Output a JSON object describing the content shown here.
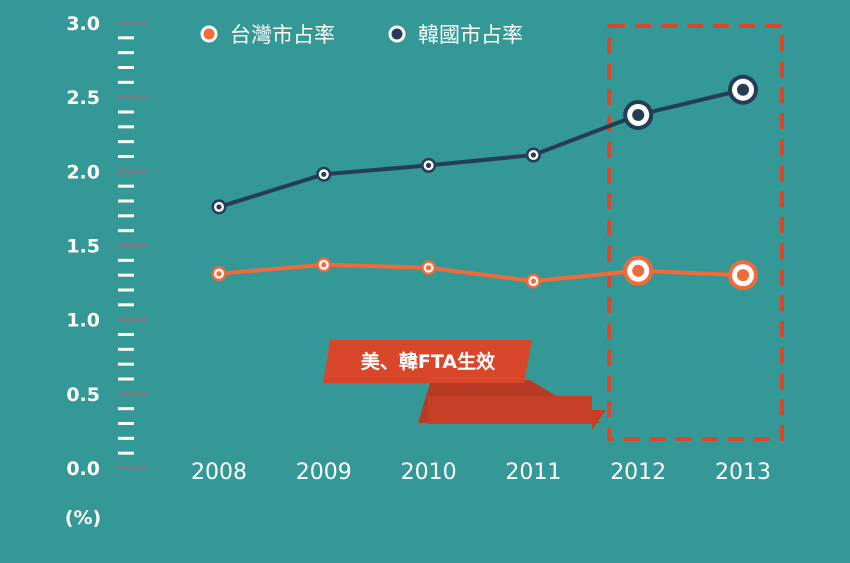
{
  "chart_data": {
    "type": "line",
    "x": [
      "2008",
      "2009",
      "2010",
      "2011",
      "2012",
      "2013"
    ],
    "series": [
      {
        "name": "台灣市占率",
        "values": [
          1.31,
          1.37,
          1.35,
          1.26,
          1.33,
          1.3
        ],
        "color": "#f06a3a"
      },
      {
        "name": "韓國市占率",
        "values": [
          1.76,
          1.98,
          2.04,
          2.11,
          2.38,
          2.55
        ],
        "color": "#253d57"
      }
    ],
    "y_ticks": [
      "0.0",
      "0.5",
      "1.0",
      "1.5",
      "2.0",
      "2.5",
      "3.0"
    ],
    "ylim": [
      0,
      3.0
    ],
    "y_unit_label": "(%)",
    "highlight_range": [
      "2012",
      "2013"
    ],
    "highlight_color": "#d9472b",
    "annotation": "美、韓FTA生效",
    "legend_position": "top"
  }
}
